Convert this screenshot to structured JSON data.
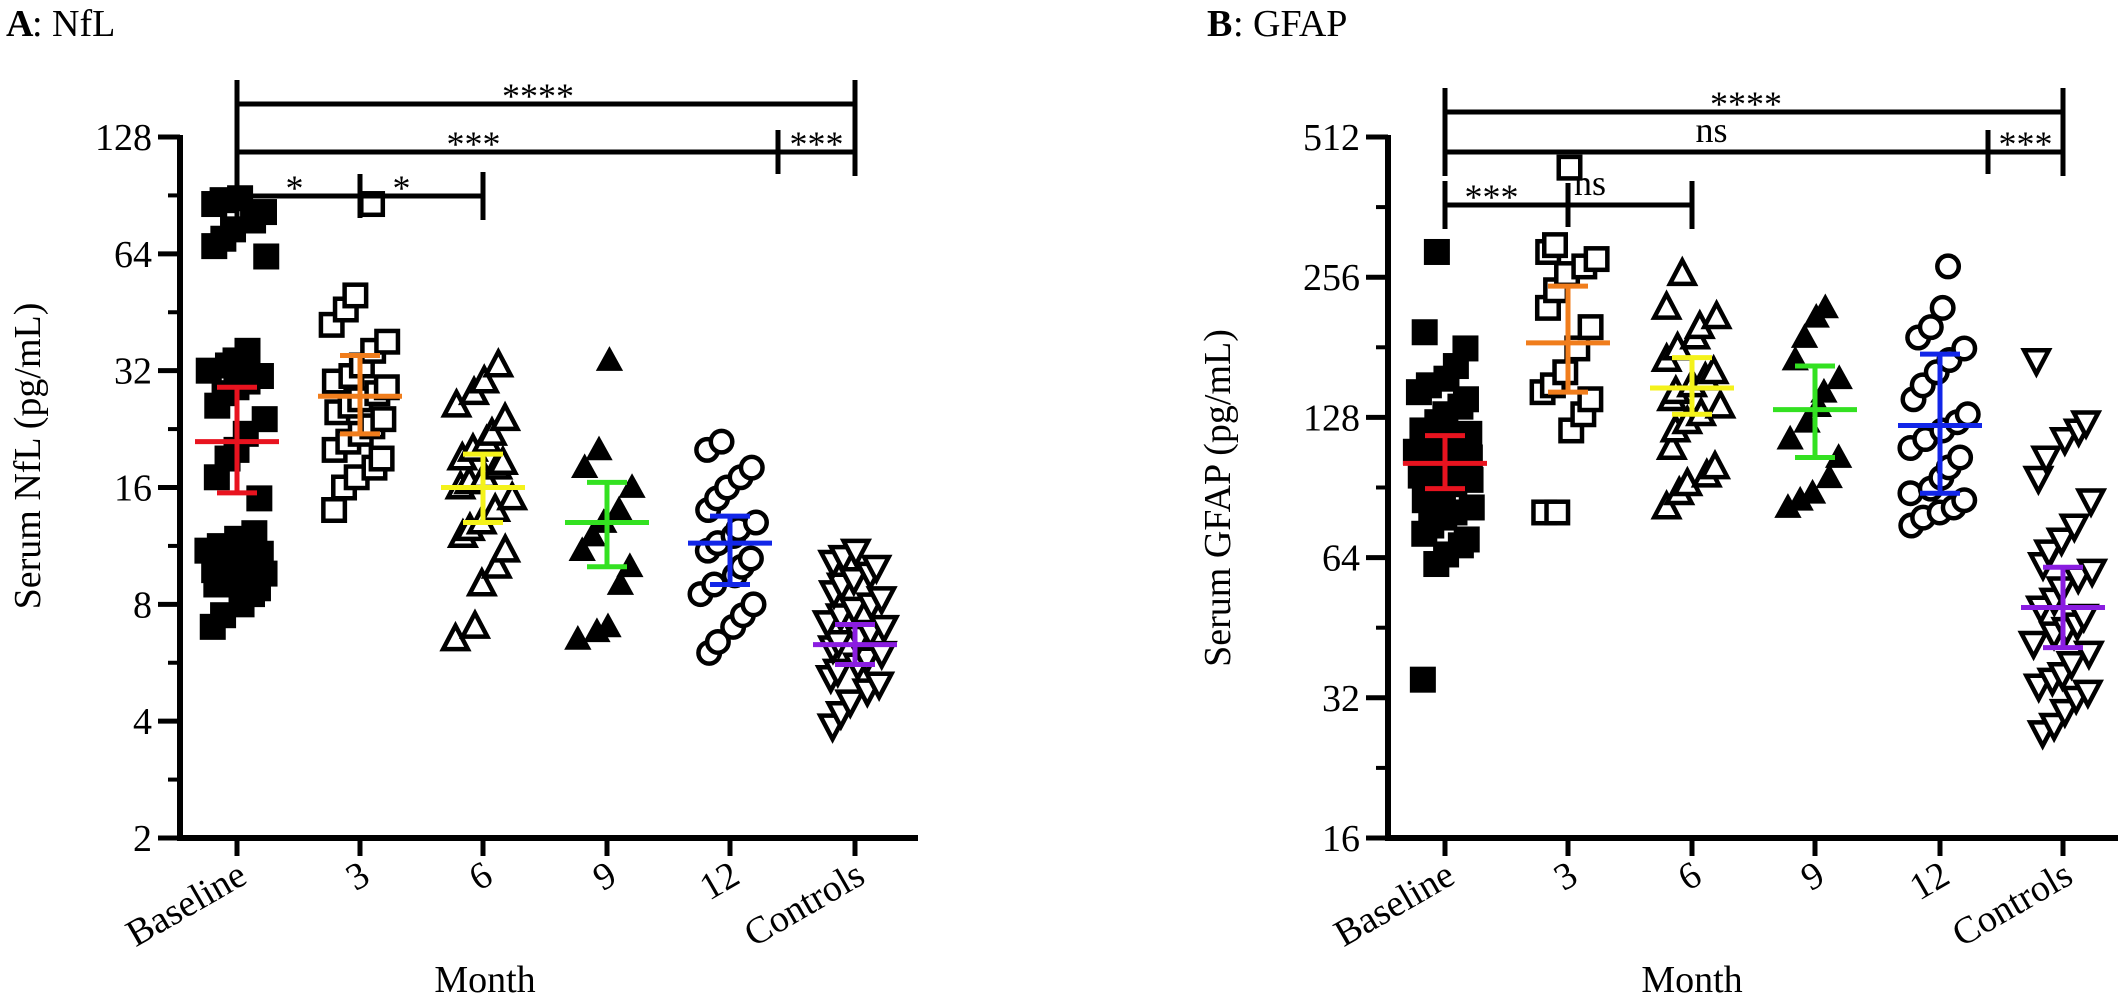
{
  "chart_data": [
    {
      "type": "scatter",
      "panel_letter": "A",
      "title": ": NfL",
      "xlabel": "Month",
      "ylabel": "Serum NfL (pg/mL)",
      "y_scale": "log2",
      "ylim": [
        2,
        128
      ],
      "yticks": [
        2,
        4,
        8,
        16,
        32,
        64,
        128
      ],
      "categories": [
        "Baseline",
        "3",
        "6",
        "9",
        "12",
        "Controls"
      ],
      "series": [
        {
          "category": "Baseline",
          "marker": "filled-square",
          "color": "#000000",
          "summary_color": "#e8131f",
          "mean": 21,
          "err_low": 15.5,
          "err_high": 29,
          "values": [
            7,
            7.5,
            8,
            8.5,
            8.8,
            9,
            9.2,
            9.3,
            9.5,
            9.6,
            9.8,
            10,
            10.2,
            10.5,
            10.8,
            11,
            11.3,
            11.8,
            12.2,
            15,
            17,
            19,
            20,
            22,
            24,
            26,
            28,
            29,
            30,
            31,
            32,
            33,
            34,
            36,
            63,
            67,
            70,
            74,
            78,
            82,
            86,
            88,
            89
          ]
        },
        {
          "category": "3",
          "marker": "open-square",
          "color": "#000000",
          "summary_color": "#f07d1c",
          "mean": 27.5,
          "err_low": 22,
          "err_high": 35,
          "values": [
            14,
            16,
            17,
            18,
            19,
            20,
            21,
            22,
            23,
            24,
            25,
            26,
            27,
            28,
            29,
            30,
            31,
            33,
            36,
            38,
            42,
            46,
            50,
            86
          ]
        },
        {
          "category": "6",
          "marker": "open-triangle-up",
          "color": "#000000",
          "summary_color": "#f4f21a",
          "mean": 16,
          "err_low": 13,
          "err_high": 19.5,
          "values": [
            6.5,
            7,
            9,
            10,
            11,
            12,
            12.5,
            13,
            14,
            15,
            16,
            16.5,
            17,
            18,
            18.5,
            19,
            20,
            21,
            22,
            24,
            26,
            28,
            30,
            33
          ]
        },
        {
          "category": "9",
          "marker": "filled-triangle-up",
          "color": "#000000",
          "summary_color": "#33e121",
          "mean": 13,
          "err_low": 10,
          "err_high": 16.5,
          "values": [
            6.5,
            6.8,
            7,
            9,
            10,
            11,
            12,
            13,
            14,
            16,
            18,
            20,
            34
          ]
        },
        {
          "category": "12",
          "marker": "open-circle",
          "color": "#000000",
          "summary_color": "#1226e8",
          "mean": 11.5,
          "err_low": 9,
          "err_high": 13.5,
          "values": [
            6,
            6.4,
            7,
            7.5,
            8,
            8.5,
            9,
            9.5,
            10,
            10.5,
            11,
            11.5,
            12,
            12.5,
            13,
            14,
            15,
            16,
            17,
            18,
            20,
            21
          ]
        },
        {
          "category": "Controls",
          "marker": "open-triangle-down",
          "color": "#000000",
          "summary_color": "#8a1de0",
          "mean": 6.3,
          "err_low": 5.6,
          "err_high": 7.1,
          "values": [
            3.9,
            4.2,
            4.5,
            4.8,
            5,
            5.2,
            5.4,
            5.6,
            5.8,
            6,
            6.2,
            6.4,
            6.6,
            6.8,
            7,
            7.2,
            7.5,
            7.8,
            8,
            8.3,
            8.6,
            9,
            9.3,
            9.6,
            10,
            10.3,
            10.6,
            11
          ]
        }
      ],
      "comparisons": [
        {
          "from": "Baseline",
          "to": "Controls",
          "level": 3,
          "label": "****"
        },
        {
          "from": "Baseline",
          "to": "Controls",
          "level": 2,
          "label": "***",
          "mid_tick": "12",
          "second_label": "***"
        },
        {
          "from": "Baseline",
          "to": "6",
          "level": 1,
          "label": "*",
          "mid_tick": "3",
          "second_label": "*"
        }
      ]
    },
    {
      "type": "scatter",
      "panel_letter": "B",
      "title": ": GFAP",
      "xlabel": "Month",
      "ylabel": "Serum GFAP (pg/mL)",
      "y_scale": "log2",
      "ylim": [
        16,
        512
      ],
      "yticks": [
        16,
        32,
        64,
        128,
        256,
        512
      ],
      "categories": [
        "Baseline",
        "3",
        "6",
        "9",
        "12",
        "Controls"
      ],
      "series": [
        {
          "category": "Baseline",
          "marker": "filled-square",
          "color": "#000000",
          "summary_color": "#e8131f",
          "mean": 102,
          "err_low": 90,
          "err_high": 117,
          "values": [
            35,
            62,
            65,
            68,
            70,
            72,
            75,
            78,
            80,
            82,
            85,
            88,
            90,
            92,
            94,
            96,
            98,
            100,
            102,
            105,
            108,
            110,
            112,
            115,
            118,
            120,
            125,
            130,
            135,
            140,
            145,
            150,
            155,
            165,
            180,
            195,
            290
          ]
        },
        {
          "category": "3",
          "marker": "open-square",
          "color": "#000000",
          "summary_color": "#f07d1c",
          "mean": 185,
          "err_low": 145,
          "err_high": 245,
          "values": [
            80,
            80,
            120,
            130,
            140,
            145,
            150,
            160,
            180,
            200,
            220,
            240,
            260,
            270,
            280,
            290,
            300,
            440
          ]
        },
        {
          "category": "6",
          "marker": "open-triangle-up",
          "color": "#000000",
          "summary_color": "#f4f21a",
          "mean": 148,
          "err_low": 130,
          "err_high": 172,
          "values": [
            82,
            88,
            92,
            96,
            100,
            110,
            120,
            125,
            130,
            135,
            140,
            145,
            150,
            155,
            160,
            170,
            180,
            190,
            200,
            210,
            220,
            260
          ]
        },
        {
          "category": "9",
          "marker": "filled-triangle-up",
          "color": "#000000",
          "summary_color": "#33e121",
          "mean": 133,
          "err_low": 105,
          "err_high": 165,
          "values": [
            82,
            85,
            88,
            95,
            105,
            115,
            125,
            135,
            145,
            155,
            170,
            190,
            210,
            220
          ]
        },
        {
          "category": "12",
          "marker": "open-circle",
          "color": "#000000",
          "summary_color": "#1226e8",
          "mean": 123,
          "err_low": 88,
          "err_high": 175,
          "values": [
            75,
            78,
            80,
            82,
            85,
            88,
            90,
            95,
            100,
            105,
            110,
            115,
            120,
            125,
            130,
            140,
            150,
            160,
            170,
            180,
            190,
            200,
            220,
            270
          ]
        },
        {
          "category": "Controls",
          "marker": "open-triangle-down",
          "color": "#000000",
          "summary_color": "#8a1de0",
          "mean": 50,
          "err_low": 41,
          "err_high": 61,
          "values": [
            27,
            28,
            30,
            32,
            33,
            34,
            35,
            36,
            38,
            40,
            42,
            44,
            45,
            46,
            48,
            50,
            52,
            55,
            58,
            60,
            62,
            66,
            70,
            75,
            85,
            95,
            105,
            115,
            120,
            125,
            170
          ]
        }
      ],
      "comparisons": [
        {
          "from": "Baseline",
          "to": "Controls",
          "level": 3,
          "label": "****"
        },
        {
          "from": "Baseline",
          "to": "Controls",
          "level": 2,
          "label": "ns",
          "mid_tick": "12",
          "second_label": "***"
        },
        {
          "from": "Baseline",
          "to": "6",
          "level": 1,
          "label": "***",
          "mid_tick": "3",
          "second_label": "ns"
        }
      ]
    }
  ]
}
